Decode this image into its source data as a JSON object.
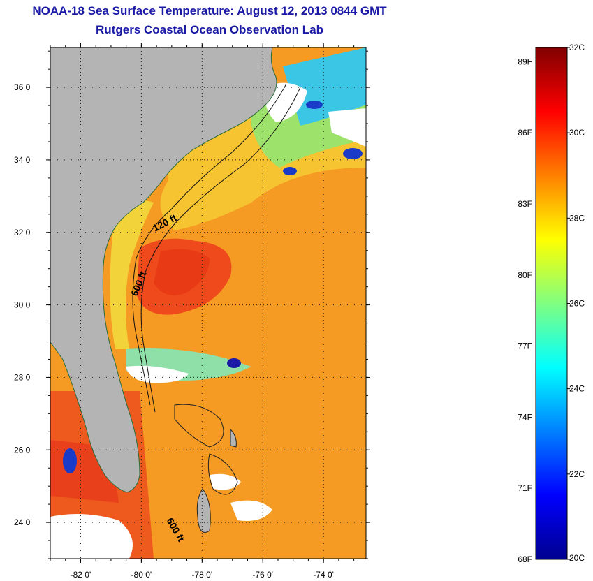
{
  "header": {
    "title": "NOAA-18 Sea Surface Temperature:  August 12, 2013 0844 GMT",
    "subtitle": "Rutgers Coastal Ocean Observation Lab"
  },
  "map": {
    "lat_range": [
      23,
      37.1
    ],
    "lon_range": [
      -83,
      -72.6
    ],
    "lat_ticks": [
      {
        "value": 36,
        "label": "36 0'"
      },
      {
        "value": 34,
        "label": "34 0'"
      },
      {
        "value": 32,
        "label": "32 0'"
      },
      {
        "value": 30,
        "label": "30 0'"
      },
      {
        "value": 28,
        "label": "28 0'"
      },
      {
        "value": 26,
        "label": "26 0'"
      },
      {
        "value": 24,
        "label": "24 0'"
      }
    ],
    "lon_ticks": [
      {
        "value": -82,
        "label": "-82 0'"
      },
      {
        "value": -80,
        "label": "-80 0'"
      },
      {
        "value": -78,
        "label": "-78 0'"
      },
      {
        "value": -76,
        "label": "-76 0'"
      },
      {
        "value": -74,
        "label": "-74 0'"
      }
    ],
    "contour_labels": [
      "120 ft",
      "600 ft",
      "600 ft"
    ],
    "colors": {
      "land": "#b4b4b4",
      "cloud": "#ffffff",
      "warm_water": "#f59a22",
      "hot_water": "#ee4418"
    }
  },
  "colorbar": {
    "temp_range_c": [
      20,
      32
    ],
    "celsius_labels": [
      "32C",
      "30C",
      "28C",
      "26C",
      "24C",
      "22C",
      "20C"
    ],
    "fahrenheit_labels": [
      {
        "value": 89,
        "label": "89F"
      },
      {
        "value": 86,
        "label": "86F"
      },
      {
        "value": 83,
        "label": "83F"
      },
      {
        "value": 80,
        "label": "80F"
      },
      {
        "value": 77,
        "label": "77F"
      },
      {
        "value": 74,
        "label": "74F"
      },
      {
        "value": 71,
        "label": "71F"
      },
      {
        "value": 68,
        "label": "68F"
      }
    ],
    "colormap": [
      "#00008f",
      "#0000ff",
      "#0080ff",
      "#00ffff",
      "#80ff80",
      "#ffff00",
      "#ff8000",
      "#ff0000",
      "#800000"
    ]
  }
}
